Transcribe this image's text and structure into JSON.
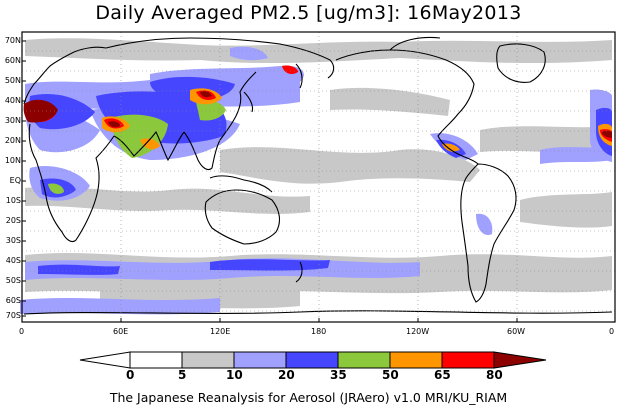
{
  "title": "Daily Averaged PM2.5 [ug/m3]: 16May2013",
  "credit": "The Japanese Reanalysis for Aerosol (JRAero) v1.0 MRI/KU_RIAM",
  "map": {
    "lat_labels": [
      "70N",
      "60N",
      "50N",
      "40N",
      "30N",
      "20N",
      "10N",
      "EQ",
      "10S",
      "20S",
      "30S",
      "40S",
      "50S",
      "60S",
      "70S"
    ],
    "lon_labels": [
      "0",
      "60E",
      "120E",
      "180",
      "120W",
      "60W",
      "0"
    ]
  },
  "colorbar": {
    "labels": [
      "0",
      "5",
      "10",
      "20",
      "35",
      "50",
      "65",
      "80"
    ],
    "colors": [
      "#ffffff",
      "#c8c8c8",
      "#a0a0ff",
      "#4646ff",
      "#8cc83c",
      "#ff9600",
      "#ff0000",
      "#8c0000"
    ]
  }
}
